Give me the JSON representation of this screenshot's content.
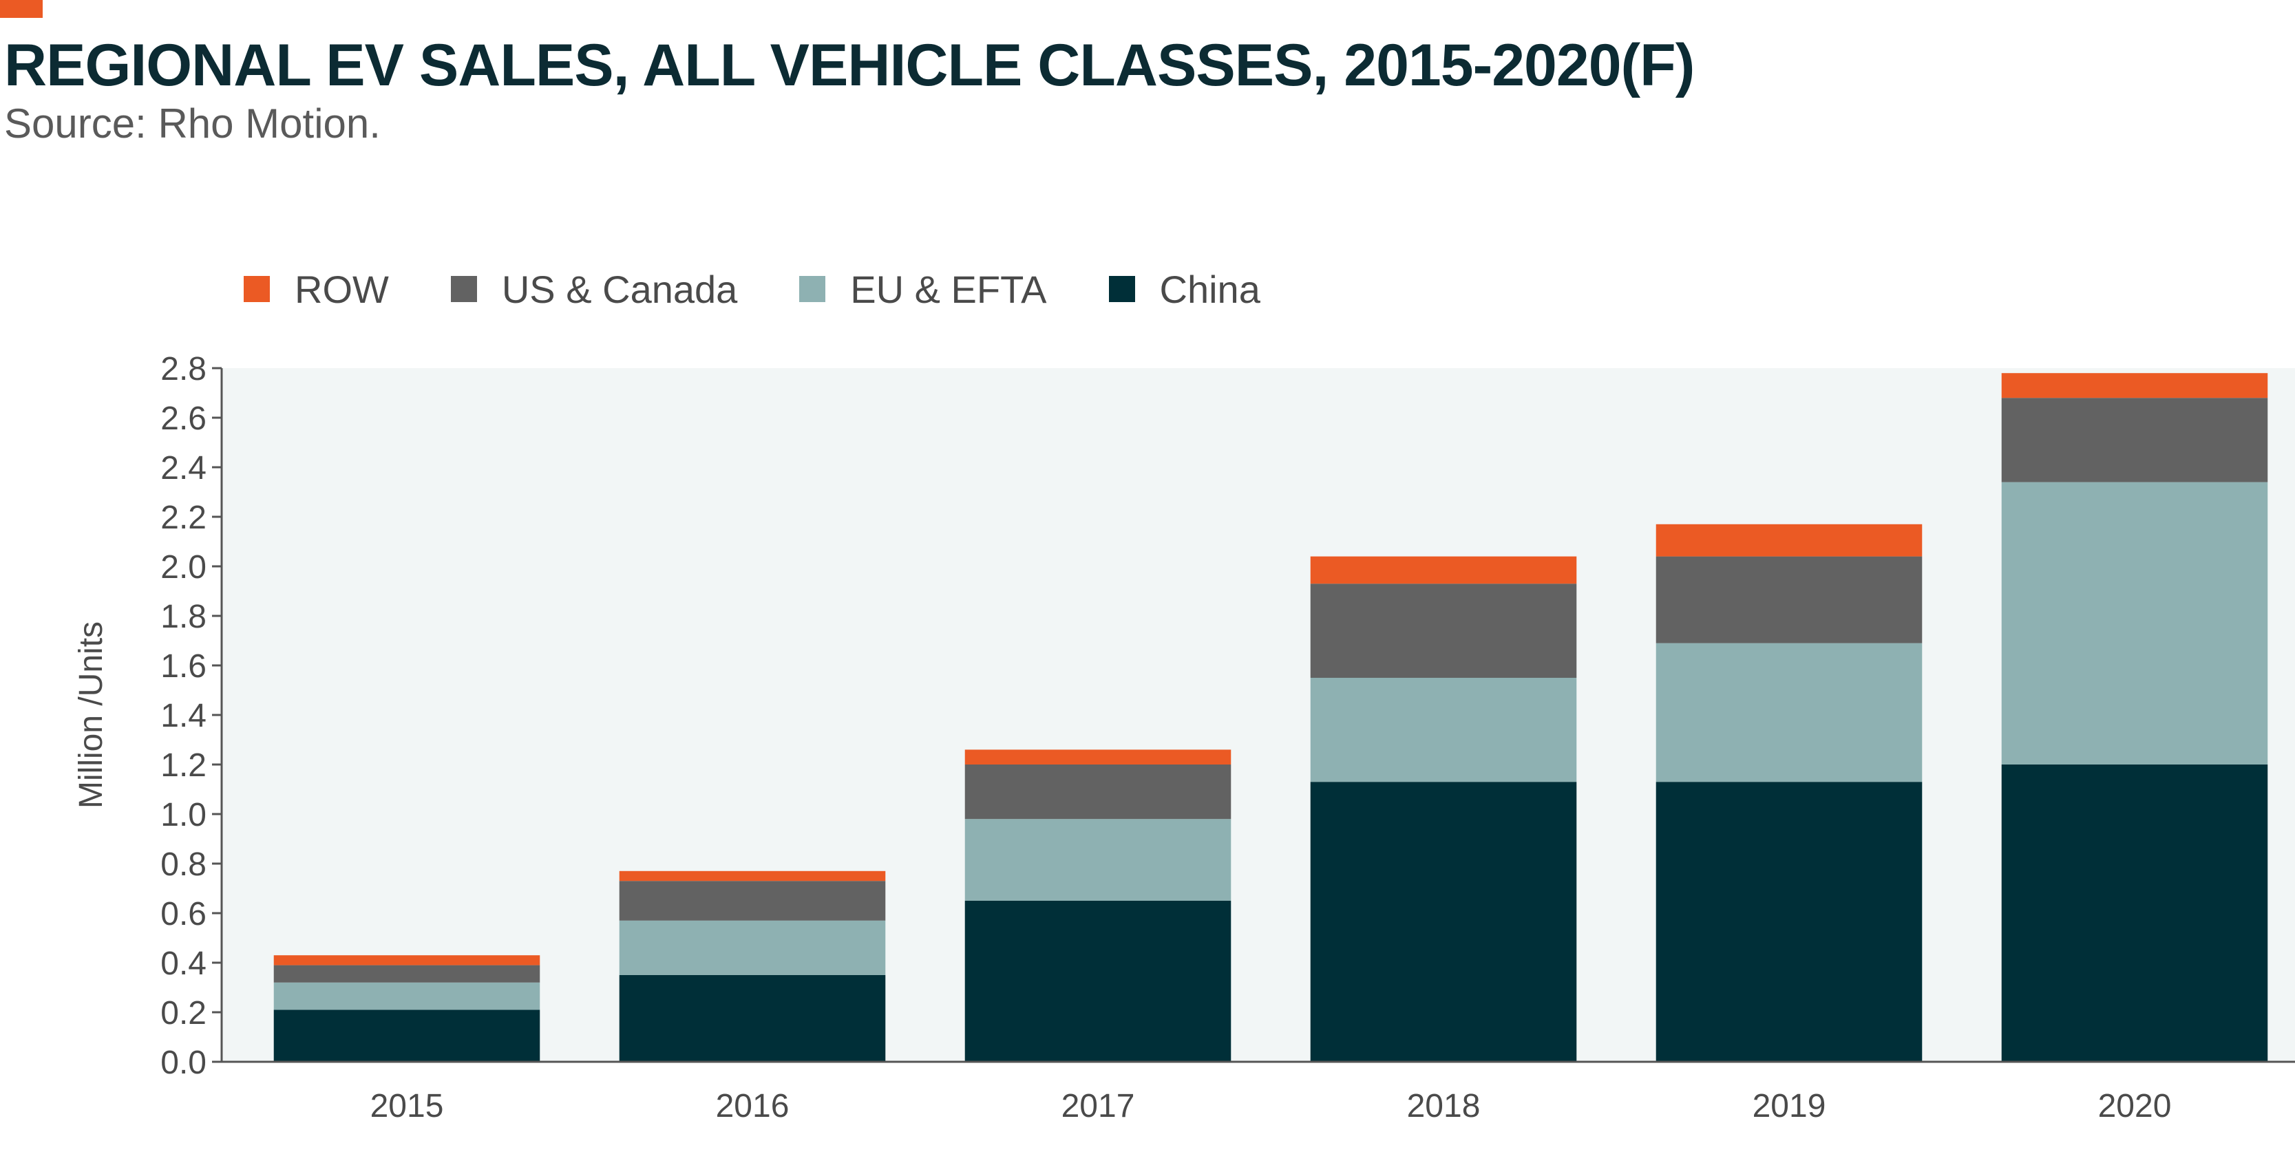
{
  "header": {
    "title": "REGIONAL EV SALES, ALL VEHICLE CLASSES, 2015-2020(F)",
    "subtitle": "Source: Rho Motion."
  },
  "colors": {
    "accent": "#eb5a24",
    "title_text": "#0c2b33",
    "plot_bg": "#f2f6f6",
    "axis": "#555555"
  },
  "chart_data": {
    "type": "bar",
    "stacked": true,
    "categories": [
      "2015",
      "2016",
      "2017",
      "2018",
      "2019",
      "2020"
    ],
    "series": [
      {
        "name": "China",
        "color": "#002f38",
        "values": [
          0.21,
          0.35,
          0.65,
          1.13,
          1.13,
          1.2
        ]
      },
      {
        "name": "EU & EFTA",
        "color": "#8eb1b2",
        "values": [
          0.11,
          0.22,
          0.33,
          0.42,
          0.56,
          1.14
        ]
      },
      {
        "name": "US & Canada",
        "color": "#626262",
        "values": [
          0.07,
          0.16,
          0.22,
          0.38,
          0.35,
          0.34
        ]
      },
      {
        "name": "ROW",
        "color": "#eb5a24",
        "values": [
          0.04,
          0.04,
          0.06,
          0.11,
          0.13,
          0.1
        ]
      }
    ],
    "legend_order": [
      "ROW",
      "US & Canada",
      "EU & EFTA",
      "China"
    ],
    "legend_position": "top-left",
    "ylabel": "Million /Units",
    "xlabel": "",
    "ylim": [
      0,
      2.8
    ],
    "yticks": [
      "0.0",
      "0.2",
      "0.4",
      "0.6",
      "0.8",
      "1.0",
      "1.2",
      "1.4",
      "1.6",
      "1.8",
      "2.0",
      "2.2",
      "2.4",
      "2.6",
      "2.8"
    ],
    "grid": false
  }
}
